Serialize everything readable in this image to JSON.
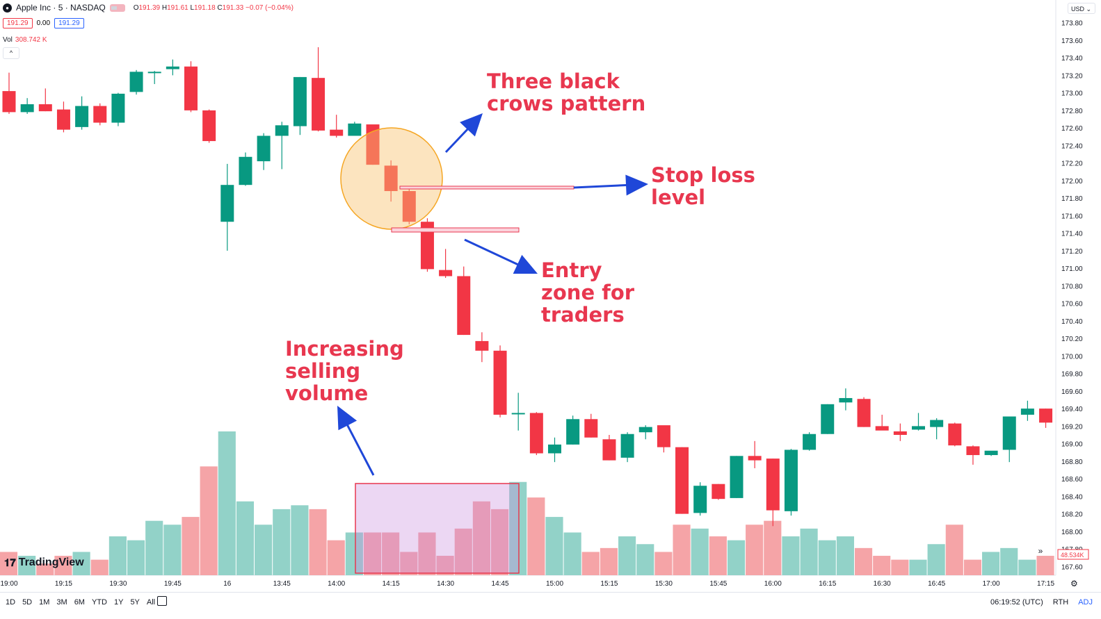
{
  "header": {
    "symbol": "Apple Inc · 5 · NASDAQ",
    "ohlc": {
      "o_label": "O",
      "o": "191.39",
      "h_label": "H",
      "h": "191.61",
      "l_label": "L",
      "l": "191.18",
      "c_label": "C",
      "c": "191.33",
      "chg": "−0.07 (−0.04%)"
    },
    "bid": "191.29",
    "spread": "0.00",
    "ask": "191.29",
    "vol_label": "Vol",
    "vol_value": "308.742 K",
    "currency": "USD",
    "colors": {
      "up": "#089981",
      "down": "#f23645",
      "accent": "#2962ff"
    }
  },
  "branding": {
    "name": "TradingView"
  },
  "bottom": {
    "ranges": [
      "1D",
      "5D",
      "1M",
      "3M",
      "6M",
      "YTD",
      "1Y",
      "5Y",
      "All"
    ],
    "time": "06:19:52 (UTC)",
    "session": "RTH",
    "adj": "ADJ"
  },
  "price_badge": "48.534K",
  "annotations": {
    "crows": [
      "Three black",
      "crows pattern"
    ],
    "stop": [
      "Stop loss",
      "level"
    ],
    "entry": [
      "Entry",
      "zone for",
      "traders"
    ],
    "volume": [
      "Increasing",
      "selling",
      "volume"
    ]
  },
  "chart_data": {
    "type": "candlestick",
    "y_range": [
      167.5,
      173.9
    ],
    "y_ticks": [
      "173.80",
      "173.60",
      "173.40",
      "173.20",
      "173.00",
      "172.80",
      "172.60",
      "172.40",
      "172.20",
      "172.00",
      "171.80",
      "171.60",
      "171.40",
      "171.20",
      "171.00",
      "170.80",
      "170.60",
      "170.40",
      "170.20",
      "170.00",
      "169.80",
      "169.60",
      "169.40",
      "169.20",
      "169.00",
      "168.80",
      "168.60",
      "168.40",
      "168.20",
      "168.00",
      "167.80",
      "167.60"
    ],
    "y_tick_values": [
      173.8,
      173.6,
      173.4,
      173.2,
      173.0,
      172.8,
      172.6,
      172.4,
      172.2,
      172.0,
      171.8,
      171.6,
      171.4,
      171.2,
      171.0,
      170.8,
      170.6,
      170.4,
      170.2,
      170.0,
      169.8,
      169.6,
      169.4,
      169.2,
      169.0,
      168.8,
      168.6,
      168.4,
      168.2,
      168.0,
      167.8,
      167.6
    ],
    "x_ticks": [
      {
        "label": "19:00",
        "i": 0
      },
      {
        "label": "19:15",
        "i": 3
      },
      {
        "label": "19:30",
        "i": 6
      },
      {
        "label": "19:45",
        "i": 9
      },
      {
        "label": "16",
        "i": 12
      },
      {
        "label": "13:45",
        "i": 15
      },
      {
        "label": "14:00",
        "i": 18
      },
      {
        "label": "14:15",
        "i": 21
      },
      {
        "label": "14:30",
        "i": 24
      },
      {
        "label": "14:45",
        "i": 27
      },
      {
        "label": "15:00",
        "i": 30
      },
      {
        "label": "15:15",
        "i": 33
      },
      {
        "label": "15:30",
        "i": 36
      },
      {
        "label": "15:45",
        "i": 39
      },
      {
        "label": "16:00",
        "i": 42
      },
      {
        "label": "16:15",
        "i": 45
      },
      {
        "label": "16:30",
        "i": 48
      },
      {
        "label": "16:45",
        "i": 51
      },
      {
        "label": "17:00",
        "i": 54
      },
      {
        "label": "17:15",
        "i": 57
      }
    ],
    "candles": [
      {
        "o": 173.02,
        "h": 173.23,
        "l": 172.76,
        "c": 172.78
      },
      {
        "o": 172.78,
        "h": 172.94,
        "l": 172.76,
        "c": 172.87
      },
      {
        "o": 172.87,
        "h": 173.05,
        "l": 172.79,
        "c": 172.79
      },
      {
        "o": 172.81,
        "h": 172.9,
        "l": 172.55,
        "c": 172.58
      },
      {
        "o": 172.61,
        "h": 172.96,
        "l": 172.58,
        "c": 172.85
      },
      {
        "o": 172.85,
        "h": 172.88,
        "l": 172.63,
        "c": 172.66
      },
      {
        "o": 172.66,
        "h": 173.0,
        "l": 172.62,
        "c": 172.99
      },
      {
        "o": 173.01,
        "h": 173.26,
        "l": 172.98,
        "c": 173.24
      },
      {
        "o": 173.24,
        "h": 173.25,
        "l": 173.1,
        "c": 173.24
      },
      {
        "o": 173.27,
        "h": 173.38,
        "l": 173.2,
        "c": 173.3
      },
      {
        "o": 173.3,
        "h": 173.36,
        "l": 172.78,
        "c": 172.8
      },
      {
        "o": 172.8,
        "h": 172.81,
        "l": 172.43,
        "c": 172.45
      },
      {
        "o": 171.53,
        "h": 172.19,
        "l": 171.2,
        "c": 171.95
      },
      {
        "o": 171.95,
        "h": 172.32,
        "l": 171.94,
        "c": 172.27
      },
      {
        "o": 172.22,
        "h": 172.54,
        "l": 172.12,
        "c": 172.51
      },
      {
        "o": 172.51,
        "h": 172.67,
        "l": 172.13,
        "c": 172.63
      },
      {
        "o": 172.62,
        "h": 173.18,
        "l": 172.52,
        "c": 173.18
      },
      {
        "o": 173.17,
        "h": 173.52,
        "l": 172.56,
        "c": 172.57
      },
      {
        "o": 172.58,
        "h": 172.75,
        "l": 172.49,
        "c": 172.51
      },
      {
        "o": 172.51,
        "h": 172.67,
        "l": 172.52,
        "c": 172.65
      },
      {
        "o": 172.64,
        "h": 172.62,
        "l": 172.18,
        "c": 172.18
      },
      {
        "o": 172.17,
        "h": 172.23,
        "l": 171.76,
        "c": 171.88
      },
      {
        "o": 171.88,
        "h": 171.92,
        "l": 171.5,
        "c": 171.53
      },
      {
        "o": 171.53,
        "h": 171.57,
        "l": 170.96,
        "c": 170.99
      },
      {
        "o": 170.98,
        "h": 171.22,
        "l": 170.89,
        "c": 170.91
      },
      {
        "o": 170.91,
        "h": 171.02,
        "l": 170.24,
        "c": 170.24
      },
      {
        "o": 170.17,
        "h": 170.27,
        "l": 169.93,
        "c": 170.06
      },
      {
        "o": 170.06,
        "h": 170.12,
        "l": 169.3,
        "c": 169.33
      },
      {
        "o": 169.34,
        "h": 169.58,
        "l": 169.15,
        "c": 169.35
      },
      {
        "o": 169.35,
        "h": 169.36,
        "l": 168.87,
        "c": 168.89
      },
      {
        "o": 168.89,
        "h": 169.07,
        "l": 168.79,
        "c": 168.99
      },
      {
        "o": 168.99,
        "h": 169.32,
        "l": 168.99,
        "c": 169.28
      },
      {
        "o": 169.28,
        "h": 169.34,
        "l": 169.07,
        "c": 169.07
      },
      {
        "o": 169.05,
        "h": 169.1,
        "l": 168.81,
        "c": 168.81
      },
      {
        "o": 168.84,
        "h": 169.13,
        "l": 168.79,
        "c": 169.11
      },
      {
        "o": 169.13,
        "h": 169.21,
        "l": 169.05,
        "c": 169.19
      },
      {
        "o": 169.21,
        "h": 169.2,
        "l": 168.9,
        "c": 168.96
      },
      {
        "o": 168.96,
        "h": 168.96,
        "l": 168.2,
        "c": 168.2
      },
      {
        "o": 168.21,
        "h": 168.56,
        "l": 168.18,
        "c": 168.52
      },
      {
        "o": 168.54,
        "h": 168.54,
        "l": 168.36,
        "c": 168.37
      },
      {
        "o": 168.38,
        "h": 168.86,
        "l": 168.38,
        "c": 168.86
      },
      {
        "o": 168.86,
        "h": 169.03,
        "l": 168.72,
        "c": 168.81
      },
      {
        "o": 168.83,
        "h": 168.83,
        "l": 168.06,
        "c": 168.24
      },
      {
        "o": 168.23,
        "h": 168.94,
        "l": 168.18,
        "c": 168.93
      },
      {
        "o": 168.93,
        "h": 169.13,
        "l": 168.92,
        "c": 169.11
      },
      {
        "o": 169.11,
        "h": 169.45,
        "l": 169.11,
        "c": 169.45
      },
      {
        "o": 169.47,
        "h": 169.63,
        "l": 169.38,
        "c": 169.52
      },
      {
        "o": 169.51,
        "h": 169.53,
        "l": 169.19,
        "c": 169.19
      },
      {
        "o": 169.2,
        "h": 169.33,
        "l": 169.16,
        "c": 169.15
      },
      {
        "o": 169.14,
        "h": 169.23,
        "l": 169.03,
        "c": 169.1
      },
      {
        "o": 169.16,
        "h": 169.35,
        "l": 169.15,
        "c": 169.2
      },
      {
        "o": 169.19,
        "h": 169.29,
        "l": 169.05,
        "c": 169.27
      },
      {
        "o": 169.23,
        "h": 169.24,
        "l": 168.97,
        "c": 168.98
      },
      {
        "o": 168.97,
        "h": 168.98,
        "l": 168.76,
        "c": 168.87
      },
      {
        "o": 168.87,
        "h": 168.91,
        "l": 168.86,
        "c": 168.92
      },
      {
        "o": 168.93,
        "h": 169.31,
        "l": 168.79,
        "c": 169.31
      },
      {
        "o": 169.33,
        "h": 169.49,
        "l": 169.26,
        "c": 169.4
      },
      {
        "o": 169.4,
        "h": 169.4,
        "l": 169.18,
        "c": 169.24
      }
    ],
    "volume": [
      6,
      5,
      3,
      5,
      6,
      4,
      10,
      9,
      14,
      13,
      15,
      28,
      37,
      19,
      13,
      17,
      18,
      17,
      9,
      11,
      11,
      11,
      6,
      11,
      5,
      12,
      19,
      17,
      24,
      20,
      15,
      11,
      6,
      7,
      10,
      8,
      6,
      13,
      12,
      10,
      9,
      13,
      14,
      10,
      12,
      9,
      10,
      7,
      5,
      4,
      4,
      8,
      13,
      4,
      6,
      7,
      4,
      5
    ]
  }
}
